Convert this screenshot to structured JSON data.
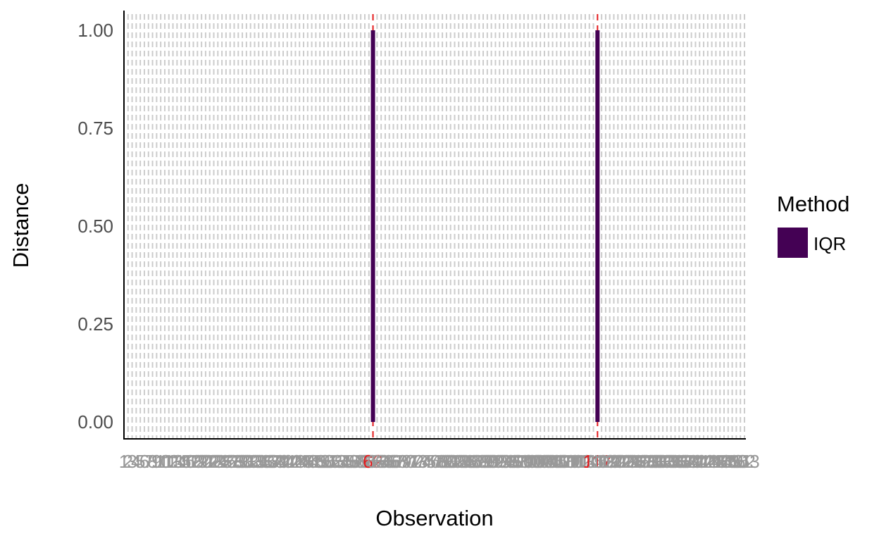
{
  "chart_data": {
    "type": "bar",
    "xlabel": "Observation",
    "ylabel": "Distance",
    "ylim": [
      0,
      1
    ],
    "y_ticks": [
      "0.00",
      "0.25",
      "0.50",
      "0.75",
      "1.00"
    ],
    "y_tick_values": [
      0,
      0.25,
      0.5,
      0.75,
      1
    ],
    "x_range": [
      1,
      153
    ],
    "observations": [
      1,
      2,
      3,
      4,
      5,
      6,
      7,
      8,
      9,
      10,
      11,
      12,
      13,
      14,
      15,
      16,
      17,
      18,
      19,
      20,
      21,
      22,
      23,
      24,
      25,
      26,
      27,
      28,
      29,
      30,
      31,
      32,
      33,
      34,
      35,
      36,
      37,
      38,
      39,
      40,
      41,
      42,
      43,
      44,
      45,
      46,
      47,
      48,
      49,
      50,
      51,
      52,
      53,
      54,
      55,
      56,
      57,
      58,
      59,
      60,
      61,
      62,
      63,
      64,
      65,
      66,
      67,
      68,
      69,
      70,
      71,
      72,
      73,
      74,
      75,
      76,
      77,
      78,
      79,
      80,
      81,
      82,
      83,
      84,
      85,
      86,
      87,
      88,
      89,
      90,
      91,
      92,
      93,
      94,
      95,
      96,
      97,
      98,
      99,
      100,
      101,
      102,
      103,
      104,
      105,
      106,
      107,
      108,
      109,
      110,
      111,
      112,
      113,
      114,
      115,
      116,
      117,
      118,
      119,
      120,
      121,
      122,
      123,
      124,
      125,
      126,
      127,
      128,
      129,
      130,
      131,
      132,
      133,
      134,
      135,
      136,
      137,
      138,
      139,
      140,
      141,
      142,
      143,
      144,
      145,
      146,
      147,
      148,
      149,
      150,
      151,
      152,
      153
    ],
    "series": [
      {
        "name": "IQR",
        "color": "#440154",
        "points": [
          {
            "x": 62,
            "y": 1.0
          },
          {
            "x": 117,
            "y": 1.0
          }
        ]
      }
    ],
    "outlier_observations": [
      62,
      117
    ],
    "outlier_color": "#e41a1c",
    "grid_line_color": "#cccccc",
    "tick_label_color": "#999999",
    "legend": {
      "title": "Method",
      "entries": [
        {
          "label": "IQR",
          "color": "#440154"
        }
      ],
      "position": "right"
    }
  }
}
